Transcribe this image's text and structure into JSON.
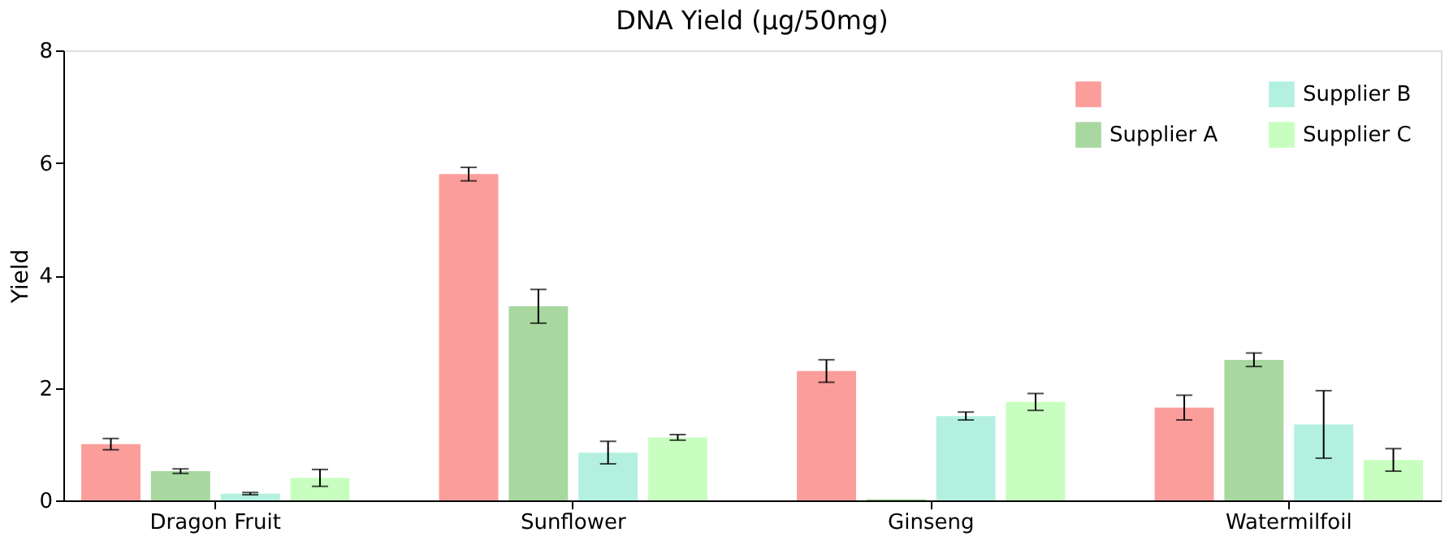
{
  "chart_data": {
    "type": "bar",
    "title": "DNA Yield (µg/50mg)",
    "ylabel": "Yield",
    "categories": [
      "Dragon Fruit",
      "Sunflower",
      "Ginseng",
      "Watermilfoil"
    ],
    "series": [
      {
        "color": "#fb9e9b",
        "values": [
          1.0,
          5.8,
          2.3,
          1.65
        ],
        "errors": [
          0.1,
          0.12,
          0.2,
          0.22
        ]
      },
      {
        "name": "Supplier A",
        "color": "#a8d8a0",
        "values": [
          0.52,
          3.45,
          0.02,
          2.5
        ],
        "errors": [
          0.04,
          0.3,
          null,
          0.12
        ]
      },
      {
        "name": "Supplier B",
        "color": "#b3f0e0",
        "values": [
          0.12,
          0.85,
          1.5,
          1.35
        ],
        "errors": [
          0.02,
          0.2,
          0.07,
          0.6
        ]
      },
      {
        "name": "Supplier C",
        "color": "#c8ffc0",
        "values": [
          0.4,
          1.12,
          1.75,
          0.72
        ],
        "errors": [
          0.15,
          0.05,
          0.15,
          0.2
        ]
      }
    ],
    "ylim": [
      0,
      8
    ],
    "yticks": [
      0,
      2,
      4,
      6,
      8
    ],
    "grid": false,
    "legend": "top right"
  }
}
